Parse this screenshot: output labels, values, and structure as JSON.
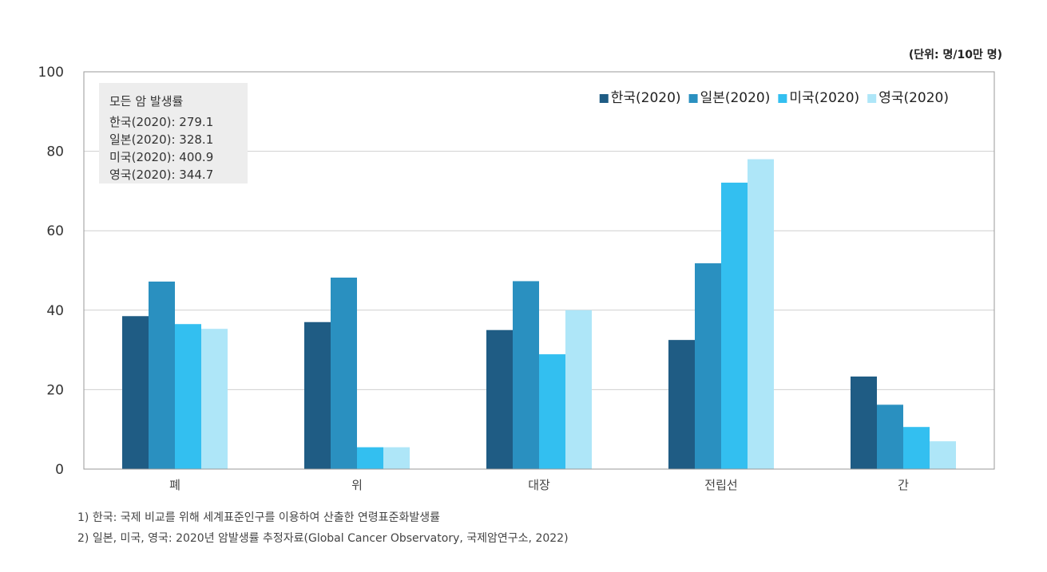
{
  "unit_label": "(단위: 명/10만 명)",
  "footnotes": [
    "1) 한국: 국제 비교를 위해 세계표준인구를 이용하여 산출한 연령표준화발생률",
    "2) 일본, 미국, 영국:  2020년 암발생률 추정자료(Global Cancer Observatory, 국제암연구소, 2022)"
  ],
  "info_box": {
    "title": "모든 암 발생률",
    "lines": [
      "한국(2020): 279.1",
      "일본(2020): 328.1",
      "미국(2020): 400.9",
      "영국(2020): 344.7"
    ]
  },
  "chart_data": {
    "type": "bar",
    "categories": [
      "폐",
      "위",
      "대장",
      "전립선",
      "간"
    ],
    "series": [
      {
        "name": "한국(2020)",
        "color": "#1f5c84",
        "values": [
          38.5,
          37.0,
          35.0,
          32.5,
          23.3
        ]
      },
      {
        "name": "일본(2020)",
        "color": "#2a90c0",
        "values": [
          47.2,
          48.2,
          47.3,
          51.8,
          16.2
        ]
      },
      {
        "name": "미국(2020)",
        "color": "#33bff0",
        "values": [
          36.5,
          5.5,
          28.9,
          72.1,
          10.6
        ]
      },
      {
        "name": "영국(2020)",
        "color": "#aee6f8",
        "values": [
          35.3,
          5.5,
          40.0,
          78.0,
          7.0
        ]
      }
    ],
    "ylim": [
      0,
      100
    ],
    "yticks": [
      0,
      20,
      40,
      60,
      80,
      100
    ],
    "grid": true,
    "legend_position": "top-right"
  }
}
